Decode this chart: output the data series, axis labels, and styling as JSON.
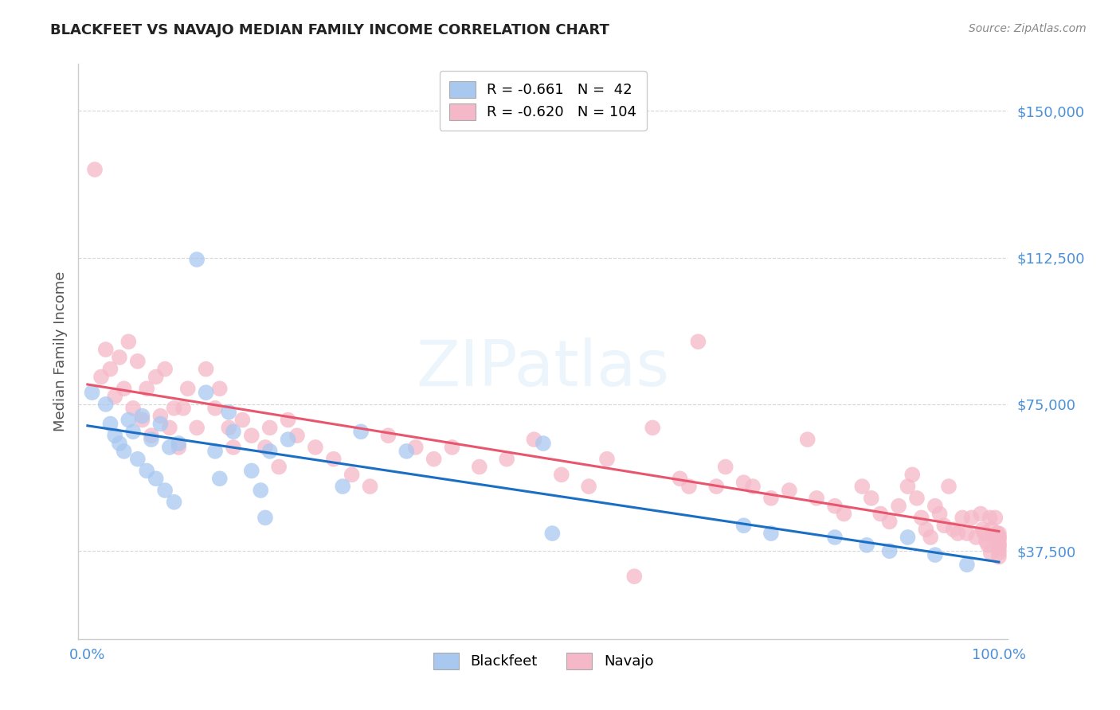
{
  "title": "BLACKFEET VS NAVAJO MEDIAN FAMILY INCOME CORRELATION CHART",
  "source": "Source: ZipAtlas.com",
  "ylabel": "Median Family Income",
  "ytick_labels": [
    "$37,500",
    "$75,000",
    "$112,500",
    "$150,000"
  ],
  "ytick_values": [
    37500,
    75000,
    112500,
    150000
  ],
  "ymin": 15000,
  "ymax": 162000,
  "xmin": -0.01,
  "xmax": 1.01,
  "blackfeet_R": "-0.661",
  "blackfeet_N": "42",
  "navajo_R": "-0.620",
  "navajo_N": "104",
  "blackfeet_color": "#a8c8f0",
  "navajo_color": "#f5b8c8",
  "blackfeet_line_color": "#1a6fc4",
  "navajo_line_color": "#e8566e",
  "bg_color": "#ffffff",
  "grid_color": "#cccccc",
  "axis_label_color": "#4a90d9",
  "title_color": "#222222",
  "source_color": "#888888",
  "blackfeet_x": [
    0.005,
    0.02,
    0.025,
    0.03,
    0.035,
    0.04,
    0.045,
    0.05,
    0.055,
    0.06,
    0.065,
    0.07,
    0.075,
    0.08,
    0.085,
    0.09,
    0.095,
    0.1,
    0.12,
    0.13,
    0.14,
    0.145,
    0.155,
    0.16,
    0.18,
    0.19,
    0.195,
    0.2,
    0.22,
    0.28,
    0.3,
    0.35,
    0.5,
    0.51,
    0.72,
    0.75,
    0.82,
    0.855,
    0.88,
    0.9,
    0.93,
    0.965
  ],
  "blackfeet_y": [
    78000,
    75000,
    70000,
    67000,
    65000,
    63000,
    71000,
    68000,
    61000,
    72000,
    58000,
    66000,
    56000,
    70000,
    53000,
    64000,
    50000,
    65000,
    112000,
    78000,
    63000,
    56000,
    73000,
    68000,
    58000,
    53000,
    46000,
    63000,
    66000,
    54000,
    68000,
    63000,
    65000,
    42000,
    44000,
    42000,
    41000,
    39000,
    37500,
    41000,
    36500,
    34000
  ],
  "navajo_x": [
    0.008,
    0.015,
    0.02,
    0.025,
    0.03,
    0.035,
    0.04,
    0.045,
    0.05,
    0.055,
    0.06,
    0.065,
    0.07,
    0.075,
    0.08,
    0.085,
    0.09,
    0.095,
    0.1,
    0.105,
    0.11,
    0.12,
    0.13,
    0.14,
    0.145,
    0.155,
    0.16,
    0.17,
    0.18,
    0.195,
    0.2,
    0.21,
    0.22,
    0.23,
    0.25,
    0.27,
    0.29,
    0.31,
    0.33,
    0.36,
    0.38,
    0.4,
    0.43,
    0.46,
    0.49,
    0.52,
    0.55,
    0.57,
    0.6,
    0.62,
    0.65,
    0.66,
    0.67,
    0.69,
    0.7,
    0.72,
    0.73,
    0.75,
    0.77,
    0.79,
    0.8,
    0.82,
    0.83,
    0.85,
    0.86,
    0.87,
    0.88,
    0.89,
    0.9,
    0.905,
    0.91,
    0.915,
    0.92,
    0.925,
    0.93,
    0.935,
    0.94,
    0.945,
    0.95,
    0.955,
    0.96,
    0.965,
    0.97,
    0.975,
    0.98,
    0.982,
    0.984,
    0.986,
    0.988,
    0.99,
    0.991,
    0.992,
    0.994,
    0.996,
    0.998,
    1.0,
    1.0,
    1.0,
    1.0,
    1.0,
    1.0,
    1.0,
    1.0,
    1.0
  ],
  "navajo_y": [
    135000,
    82000,
    89000,
    84000,
    77000,
    87000,
    79000,
    91000,
    74000,
    86000,
    71000,
    79000,
    67000,
    82000,
    72000,
    84000,
    69000,
    74000,
    64000,
    74000,
    79000,
    69000,
    84000,
    74000,
    79000,
    69000,
    64000,
    71000,
    67000,
    64000,
    69000,
    59000,
    71000,
    67000,
    64000,
    61000,
    57000,
    54000,
    67000,
    64000,
    61000,
    64000,
    59000,
    61000,
    66000,
    57000,
    54000,
    61000,
    31000,
    69000,
    56000,
    54000,
    91000,
    54000,
    59000,
    55000,
    54000,
    51000,
    53000,
    66000,
    51000,
    49000,
    47000,
    54000,
    51000,
    47000,
    45000,
    49000,
    54000,
    57000,
    51000,
    46000,
    43000,
    41000,
    49000,
    47000,
    44000,
    54000,
    43000,
    42000,
    46000,
    42000,
    46000,
    41000,
    47000,
    43000,
    42000,
    40000,
    39000,
    46000,
    37000,
    43000,
    41000,
    46000,
    42000,
    41000,
    40000,
    39000,
    37000,
    36000,
    42000,
    41000,
    39000,
    38000
  ]
}
